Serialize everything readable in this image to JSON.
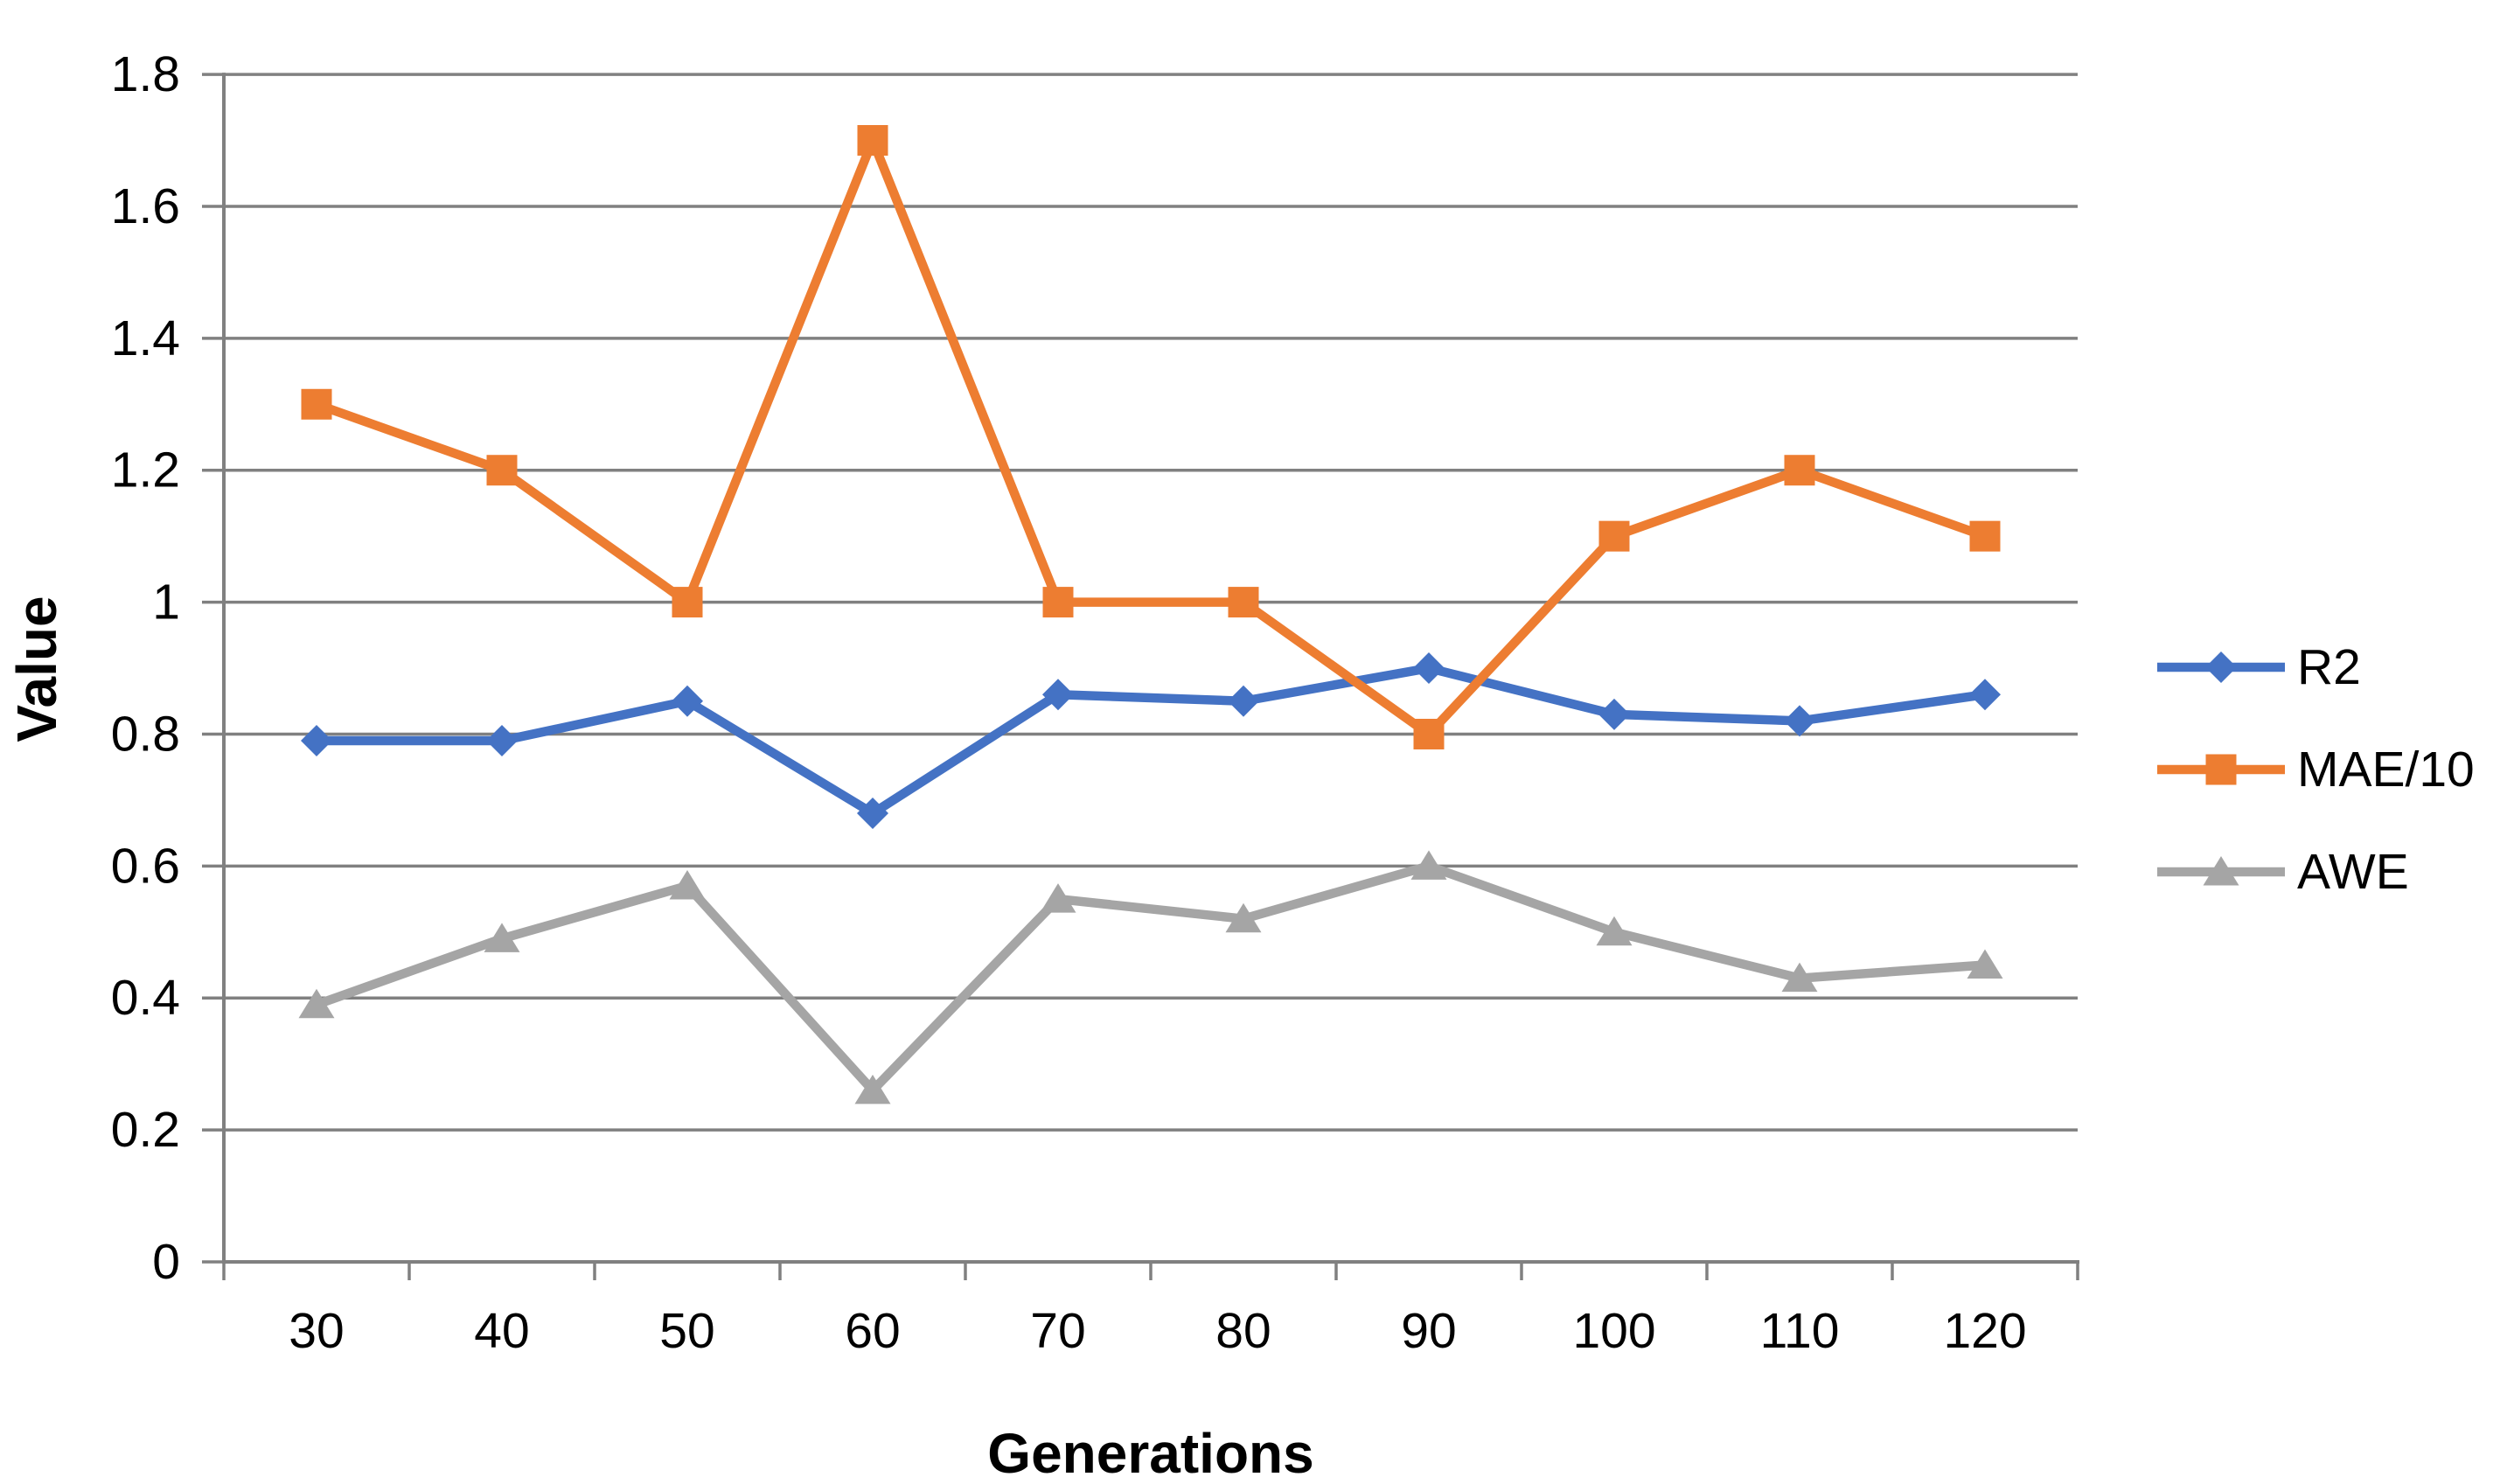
{
  "chart_data": {
    "type": "line",
    "title": "",
    "xlabel": "Generations",
    "ylabel": "Value",
    "categories": [
      "30",
      "40",
      "50",
      "60",
      "70",
      "80",
      "90",
      "100",
      "110",
      "120"
    ],
    "series": [
      {
        "name": "R2",
        "color": "#4472C4",
        "marker": "diamond",
        "values": [
          0.79,
          0.79,
          0.85,
          0.68,
          0.86,
          0.85,
          0.9,
          0.83,
          0.82,
          0.86
        ]
      },
      {
        "name": "MAE/10",
        "color": "#ED7D31",
        "marker": "square",
        "values": [
          1.3,
          1.2,
          1.0,
          1.7,
          1.0,
          1.0,
          0.8,
          1.1,
          1.2,
          1.1
        ]
      },
      {
        "name": "AWE",
        "color": "#A5A5A5",
        "marker": "triangle",
        "values": [
          0.39,
          0.49,
          0.57,
          0.26,
          0.55,
          0.52,
          0.6,
          0.5,
          0.43,
          0.45
        ]
      }
    ],
    "ylim": [
      0,
      1.8
    ],
    "ytick_step": 0.2,
    "ytick_labels": [
      "0",
      "0.2",
      "0.4",
      "0.6",
      "0.8",
      "1",
      "1.2",
      "1.4",
      "1.6",
      "1.8"
    ],
    "grid": true,
    "legend_position": "right",
    "colors": {
      "gridline": "#808080",
      "axis": "#808080",
      "text": "#000000",
      "background": "#FFFFFF"
    }
  }
}
